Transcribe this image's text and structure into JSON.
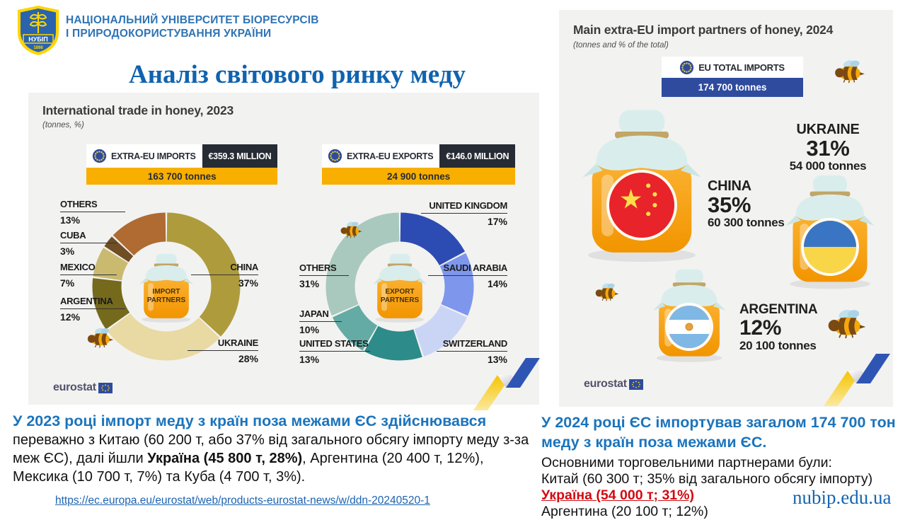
{
  "header": {
    "logo": {
      "abbr": "НУБІП",
      "year": "1898"
    },
    "university_line1": "НАЦІОНАЛЬНИЙ УНІВЕРСИТЕТ БІОРЕСУРСІВ",
    "university_line2": "І ПРИРОДОКОРИСТУВАННЯ УКРАЇНИ",
    "slide_title": "Аналіз світового ринку меду"
  },
  "left_panel": {
    "title": "International trade in honey, 2023",
    "subtitle": "(tonnes, %)",
    "imports_badge": {
      "label": "EXTRA-EU IMPORTS",
      "value": "€359.3 MILLION",
      "tonnes": "163 700 tonnes"
    },
    "exports_badge": {
      "label": "EXTRA-EU EXPORTS",
      "value": "€146.0 MILLION",
      "tonnes": "24 900 tonnes"
    },
    "eurostat": "eurostat"
  },
  "right_panel": {
    "title": "Main extra-EU import partners of honey, 2024",
    "subtitle": "(tonnes and % of the total)",
    "total_badge": {
      "label": "EU TOTAL IMPORTS",
      "tonnes": "174 700 tonnes"
    },
    "eurostat": "eurostat"
  },
  "chart_data": [
    {
      "type": "pie",
      "title": "Extra-EU import partners of honey, 2023 (share of tonnes)",
      "center_label": "IMPORT PARTNERS",
      "legend_position": "around",
      "series": [
        {
          "label": "CHINA",
          "value": 37,
          "pct": "37%",
          "color": "#AE9B3C"
        },
        {
          "label": "UKRAINE",
          "value": 28,
          "pct": "28%",
          "color": "#E9D9A2"
        },
        {
          "label": "ARGENTINA",
          "value": 12,
          "pct": "12%",
          "color": "#75691C"
        },
        {
          "label": "MEXICO",
          "value": 7,
          "pct": "7%",
          "color": "#C9BA70"
        },
        {
          "label": "CUBA",
          "value": 3,
          "pct": "3%",
          "color": "#6F4E24"
        },
        {
          "label": "OTHERS",
          "value": 13,
          "pct": "13%",
          "color": "#AF6B31"
        }
      ]
    },
    {
      "type": "pie",
      "title": "Extra-EU export partners of honey, 2023 (share of tonnes)",
      "center_label": "EXPORT PARTNERS",
      "legend_position": "around",
      "series": [
        {
          "label": "UNITED KINGDOM",
          "value": 17,
          "pct": "17%",
          "color": "#2C4CB3"
        },
        {
          "label": "SAUDI ARABIA",
          "value": 14,
          "pct": "14%",
          "color": "#7E97EC"
        },
        {
          "label": "SWITZERLAND",
          "value": 13,
          "pct": "13%",
          "color": "#CAD5F6"
        },
        {
          "label": "UNITED STATES",
          "value": 13,
          "pct": "13%",
          "color": "#2D8B89"
        },
        {
          "label": "JAPAN",
          "value": 10,
          "pct": "10%",
          "color": "#63ABA4"
        },
        {
          "label": "OTHERS",
          "value": 31,
          "pct": "31%",
          "color": "#A9C9BE"
        }
      ]
    },
    {
      "type": "pictogram",
      "title": "Main extra-EU import partners of honey, 2024",
      "total_tonnes": "174 700 tonnes",
      "items": [
        {
          "label": "CHINA",
          "pct": "35%",
          "tonnes": "60 300 tonnes",
          "flag": "china"
        },
        {
          "label": "UKRAINE",
          "pct": "31%",
          "tonnes": "54 000 tonnes",
          "flag": "ukraine"
        },
        {
          "label": "ARGENTINA",
          "pct": "12%",
          "tonnes": "20 100 tonnes",
          "flag": "argentina"
        }
      ]
    }
  ],
  "notes_left": {
    "headline": "У 2023 році імпорт меду з країн поза межами ЄС здійснювався",
    "body_before": " переважно з Китаю (60 200 т, або 37% від загального обсягу імпорту меду з-за меж ЄС), далі йшли ",
    "body_bold": "Україна (45 800 т, 28%)",
    "body_after": ", Аргентина (20 400 т, 12%), Мексика (10 700 т, 7%) та Куба (4 700 т, 3%).",
    "link": "https://ec.europa.eu/eurostat/web/products-eurostat-news/w/ddn-20240520-1"
  },
  "notes_right": {
    "headline": "У 2024 році ЄС імпортував загалом 174 700 тон меду з країн поза межами ЄС.",
    "line1": "Основними торговельними партнерами були:",
    "line2": "Китай (60 300 т; 35% від загального обсягу імпорту)",
    "line3_highlight": "Україна (54 000 т; 31%)",
    "line4": "Аргентина (20 100 т; 12%)",
    "site": "nubip.edu.ua"
  },
  "colors": {
    "accent_blue": "#1B74BC",
    "title_blue": "#1063AE",
    "navy": "#272B34",
    "yellow_bar": "#F8AF00",
    "eu_blue": "#2E4B9E",
    "red": "#D20A11",
    "panel_gray": "#F2F2F1"
  }
}
